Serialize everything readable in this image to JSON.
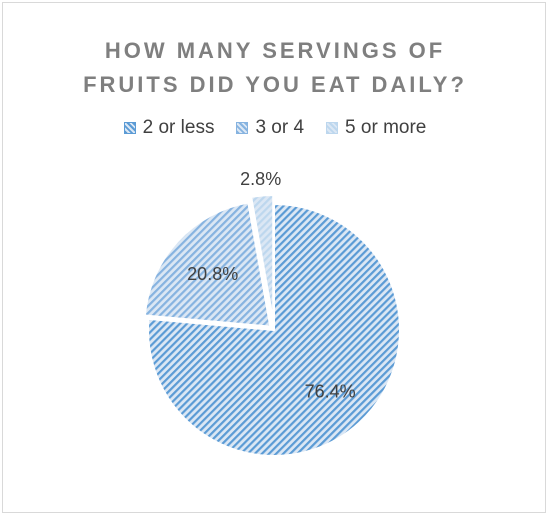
{
  "chart_data": {
    "type": "pie",
    "title_lines": [
      "HOW MANY SERVINGS OF",
      "FRUITS DID YOU EAT DAILY?"
    ],
    "categories": [
      "2 or less",
      "3 or 4",
      "5 or more"
    ],
    "values": [
      76.4,
      20.8,
      2.8
    ],
    "data_labels": [
      "76.4%",
      "20.8%",
      "2.8%"
    ],
    "colors": [
      "#5b9bd5",
      "#86b3e0",
      "#bdd7ee"
    ],
    "legend_position": "top",
    "exploded": true
  }
}
